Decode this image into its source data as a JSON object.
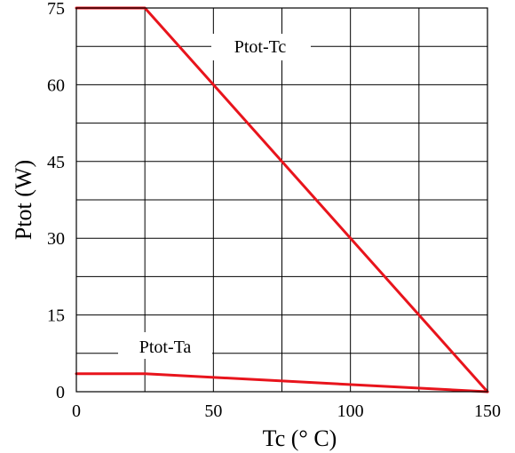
{
  "chart_data": {
    "type": "line",
    "xlabel": "Tc (° C)",
    "ylabel": "Ptot (W)",
    "xlim": [
      0,
      150
    ],
    "ylim": [
      0,
      75
    ],
    "xticks": [
      0,
      50,
      100,
      150
    ],
    "yticks": [
      0,
      15,
      30,
      45,
      60,
      75
    ],
    "x_grid_step": 25,
    "y_grid_step": 7.5,
    "grid": true,
    "line_color": "#e8141c",
    "series": [
      {
        "name": "Ptot-Tc",
        "points": [
          [
            0,
            75
          ],
          [
            25,
            75
          ],
          [
            150,
            0
          ]
        ]
      },
      {
        "name": "Ptot-Ta",
        "points": [
          [
            0,
            3.5
          ],
          [
            25,
            3.5
          ],
          [
            150,
            0
          ]
        ]
      }
    ]
  }
}
